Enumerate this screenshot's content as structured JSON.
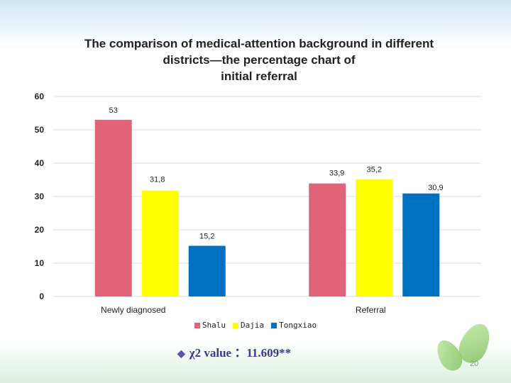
{
  "slide": {
    "title": "The comparison of medical-attention background in different\ndistricts—the percentage chart of\ninitial referral",
    "note": "χ2 value ：11.609**",
    "page_number": "20"
  },
  "chart_data": {
    "type": "bar",
    "categories": [
      "Newly diagnosed",
      "Referral"
    ],
    "series": [
      {
        "name": "Shalu",
        "values": [
          53,
          33.9
        ],
        "labels": [
          "53",
          "33,9"
        ],
        "color": "#e06377"
      },
      {
        "name": "Dajia",
        "values": [
          31.8,
          35.2
        ],
        "labels": [
          "31,8",
          "35,2"
        ],
        "color": "#ffff00"
      },
      {
        "name": "Tongxiao",
        "values": [
          15.2,
          30.9
        ],
        "labels": [
          "15,2",
          "30,9"
        ],
        "color": "#0070c0"
      }
    ],
    "yticks": [
      0,
      10,
      20,
      30,
      40,
      50,
      60
    ],
    "ylim": [
      0,
      60
    ],
    "grid": true,
    "legend_position": "bottom"
  }
}
